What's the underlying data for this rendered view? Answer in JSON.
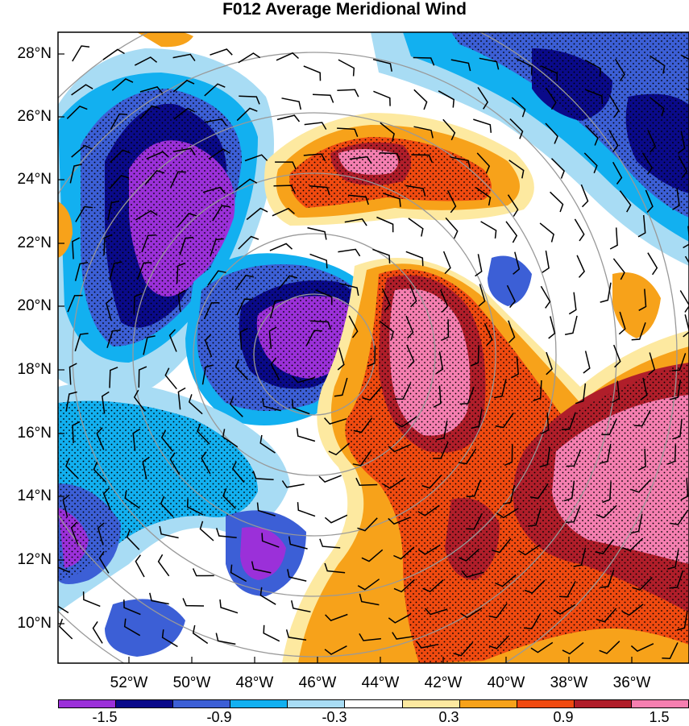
{
  "title": "F012 Average Meridional Wind",
  "lat_labels": [
    "28°N",
    "26°N",
    "24°N",
    "22°N",
    "20°N",
    "18°N",
    "16°N",
    "14°N",
    "12°N",
    "10°N"
  ],
  "lon_labels": [
    "52°W",
    "50°W",
    "48°W",
    "46°W",
    "44°W",
    "42°W",
    "40°W",
    "38°W",
    "36°W"
  ],
  "colorbar": {
    "colors": [
      "#9b30d9",
      "#0a0a8a",
      "#3c5fd6",
      "#12b0f0",
      "#a8dcf4",
      "#ffffff",
      "#fde9a0",
      "#f7a21a",
      "#f04a10",
      "#b01e2a",
      "#f57fb0"
    ],
    "tick_labels": [
      "-1.5",
      "-0.9",
      "-0.3",
      "0.3",
      "0.9",
      "1.5"
    ]
  },
  "colors": {
    "strong_neg": "#9b30d9",
    "dark_neg": "#0a0a8a",
    "mid_neg": "#3c5fd6",
    "light_neg": "#12b0f0",
    "pale_neg": "#a8dcf4",
    "neutral": "#ffffff",
    "pale_pos": "#fde9a0",
    "light_pos": "#f7a21a",
    "mid_pos": "#f04a10",
    "dark_pos": "#b01e2a",
    "strong_pos": "#f57fb0"
  }
}
